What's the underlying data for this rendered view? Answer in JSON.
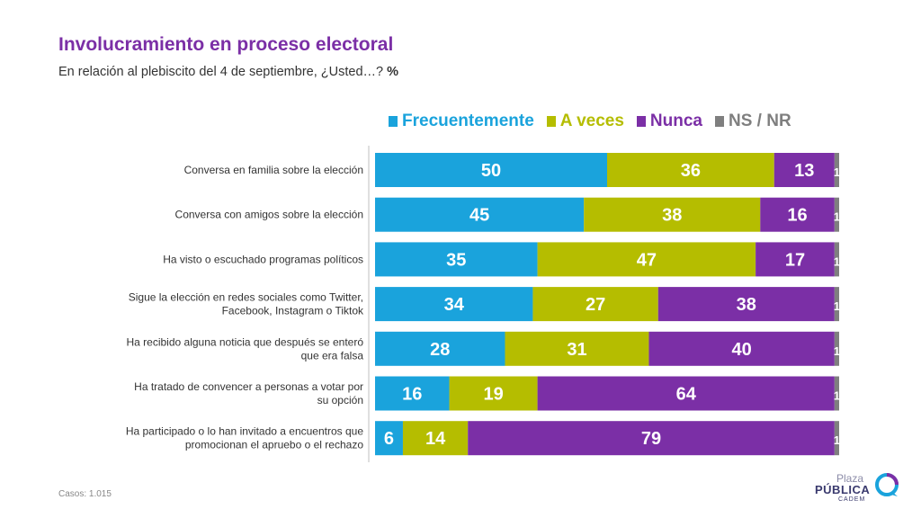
{
  "title": "Involucramiento en proceso electoral",
  "subtitle": "En relación al plebiscito del 4 de septiembre, ¿Usted…?",
  "subtitle_unit": "%",
  "footer": {
    "casos_label": "Casos:",
    "casos_value": "1.015"
  },
  "logo": {
    "line1": "Plaza",
    "line2": "PÚBLICA",
    "line3": "CADEM"
  },
  "colors": {
    "Frecuentemente": "#1aa3dc",
    "A veces": "#b5bd00",
    "Nunca": "#7b2fa6",
    "NS / NR": "#7f7f7f",
    "title": "#7b2fa6"
  },
  "chart_data": {
    "type": "bar",
    "orientation": "horizontal",
    "stacked": true,
    "legend_position": "top",
    "categories": [
      "Conversa en familia sobre la elección",
      "Conversa con amigos sobre la elección",
      "Ha visto o escuchado programas políticos",
      "Sigue la elección en redes sociales como Twitter, Facebook, Instagram o Tiktok",
      "Ha recibido alguna noticia que después se enteró que era falsa",
      "Ha tratado de convencer a personas a votar por su opción",
      "Ha participado o lo han invitado a encuentros que promocionan el apruebo o el rechazo"
    ],
    "category_lines": [
      [
        "Conversa en familia sobre la elección"
      ],
      [
        "Conversa con amigos sobre la elección"
      ],
      [
        "Ha visto o escuchado programas políticos"
      ],
      [
        "Sigue la elección en redes sociales como Twitter,",
        "Facebook, Instagram o Tiktok"
      ],
      [
        "Ha recibido alguna noticia que después se enteró",
        "que era falsa"
      ],
      [
        "Ha tratado de convencer a personas a votar por",
        "su opción"
      ],
      [
        "Ha participado o lo han invitado a encuentros que",
        "promocionan el apruebo o el rechazo"
      ]
    ],
    "series": [
      {
        "name": "Frecuentemente",
        "values": [
          50,
          45,
          35,
          34,
          28,
          16,
          6
        ]
      },
      {
        "name": "A veces",
        "values": [
          36,
          38,
          47,
          27,
          31,
          19,
          14
        ]
      },
      {
        "name": "Nunca",
        "values": [
          13,
          16,
          17,
          38,
          40,
          64,
          79
        ]
      },
      {
        "name": "NS / NR",
        "values": [
          1,
          1,
          1,
          1,
          1,
          1,
          1
        ]
      }
    ],
    "xlim": [
      0,
      100
    ]
  }
}
